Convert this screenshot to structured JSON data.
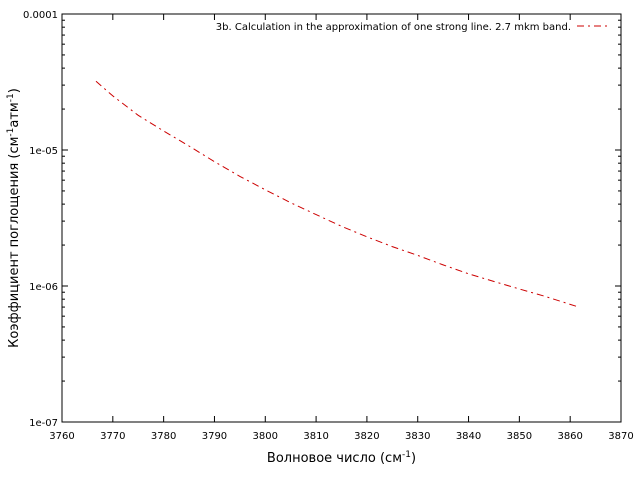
{
  "chart_data": {
    "type": "line",
    "title": "",
    "xlabel": {
      "text": "Волновое число (см",
      "sup": "-1",
      "tail": ")"
    },
    "ylabel": {
      "parts": [
        {
          "text": "Коэффициент поглощения (см"
        },
        {
          "sup": "-1"
        },
        {
          "text": "атм"
        },
        {
          "sup": "-1"
        },
        {
          "text": ")"
        }
      ]
    },
    "xlim": [
      3760,
      3870
    ],
    "ylim": [
      1e-07,
      0.0001
    ],
    "yscale": "log",
    "xticks": [
      3760,
      3770,
      3780,
      3790,
      3800,
      3810,
      3820,
      3830,
      3840,
      3850,
      3860,
      3870
    ],
    "xtick_labels": [
      "3760",
      "3770",
      "3780",
      "3790",
      "3800",
      "3810",
      "3820",
      "3830",
      "3840",
      "3850",
      "3860",
      "3870"
    ],
    "yticks": [
      1e-07,
      1e-06,
      1e-05,
      0.0001
    ],
    "ytick_labels": [
      "1e-07",
      "1e-06",
      "1e-05",
      "0.0001"
    ],
    "grid": false,
    "legend_position": "top-right",
    "series": [
      {
        "name": "3b. Calculation in the approximation of one strong line. 2.7 mkm band.",
        "color": "#cc0000",
        "dash": "dash-dot",
        "x": [
          3766.7,
          3770,
          3775,
          3780,
          3785,
          3790,
          3795,
          3800,
          3805,
          3810,
          3815,
          3820,
          3825,
          3830,
          3835,
          3840,
          3845,
          3850,
          3855,
          3861.7
        ],
        "y": [
          3.2e-05,
          2.5e-05,
          1.8e-05,
          1.38e-05,
          1.07e-05,
          8.2e-06,
          6.4e-06,
          5.1e-06,
          4.1e-06,
          3.35e-06,
          2.75e-06,
          2.3e-06,
          1.95e-06,
          1.68e-06,
          1.43e-06,
          1.23e-06,
          1.08e-06,
          9.5e-07,
          8.4e-07,
          7e-07
        ]
      }
    ]
  }
}
